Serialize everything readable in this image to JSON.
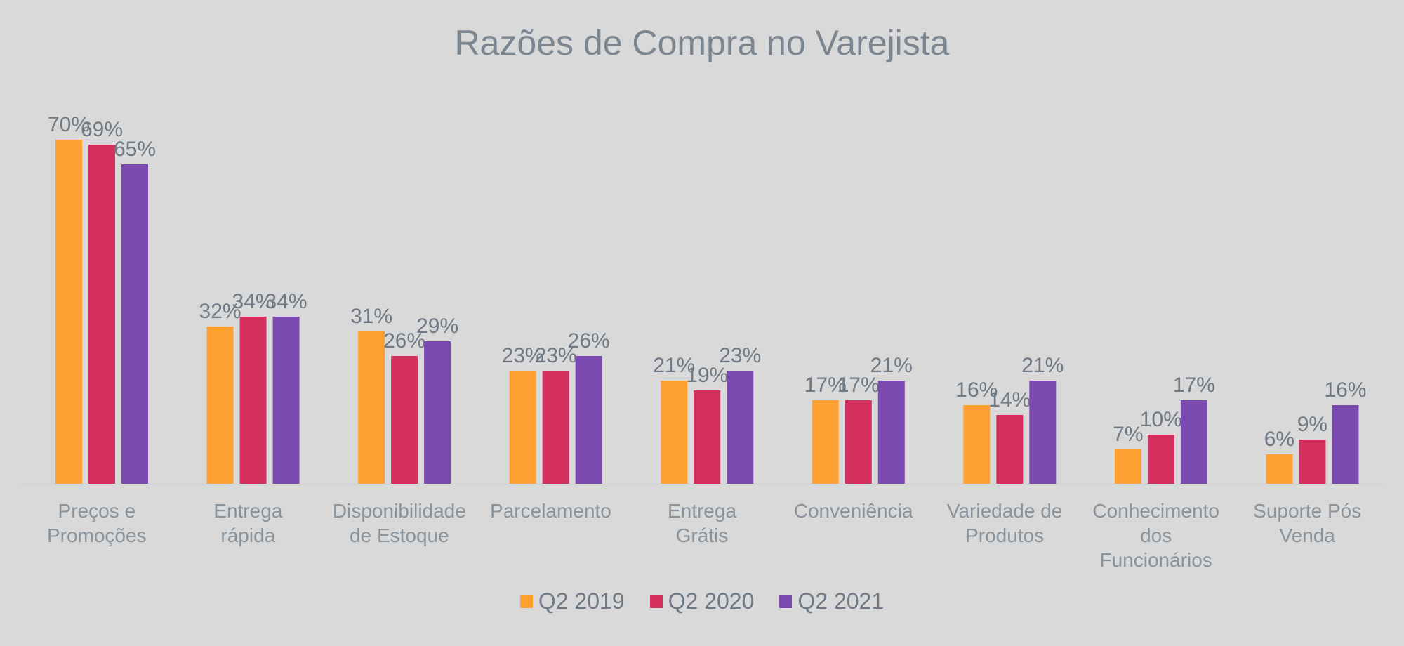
{
  "chart_data": {
    "type": "bar",
    "title": "Razões de Compra no Varejista",
    "categories": [
      "Preços e Promoções",
      "Entrega rápida",
      "Disponibilidade de Estoque",
      "Parcelamento",
      "Entrega Grátis",
      "Conveniência",
      "Variedade de Produtos",
      "Conhecimento dos Funcionários",
      "Suporte Pós Venda"
    ],
    "series": [
      {
        "name": "Q2 2019",
        "color": "#ffa033",
        "values": [
          70,
          32,
          31,
          23,
          21,
          17,
          16,
          7,
          6
        ]
      },
      {
        "name": "Q2 2020",
        "color": "#d3305d",
        "values": [
          69,
          34,
          26,
          23,
          19,
          17,
          14,
          10,
          9
        ]
      },
      {
        "name": "Q2 2021",
        "color": "#7b4ab0",
        "values": [
          65,
          34,
          29,
          26,
          23,
          21,
          21,
          17,
          16
        ]
      }
    ],
    "value_format": "%",
    "gridlines": false,
    "legend_position": "bottom"
  }
}
